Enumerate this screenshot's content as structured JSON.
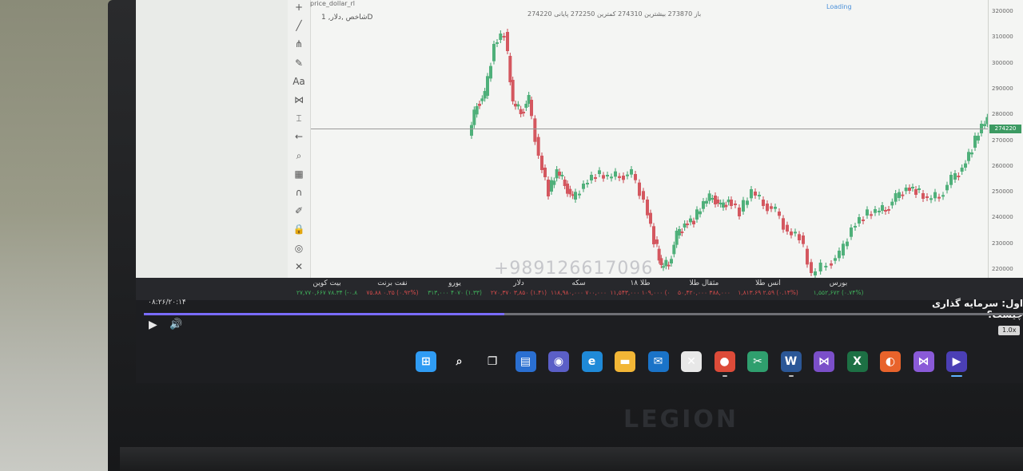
{
  "chart": {
    "symbol_tab": "price_dollar_rl",
    "legend_title": "شاخص ,دلار, 1D",
    "ohlc_text": "باز 273870 بیشترین 274310 کمترین 272250 پایانی 274220",
    "loading": "Loading",
    "current_price": "274220",
    "watermark": "+989126617096",
    "price_ticks": [
      "320000",
      "310000",
      "300000",
      "290000",
      "280000",
      "270000",
      "260000",
      "250000",
      "240000",
      "230000",
      "220000"
    ]
  },
  "toolbar_icons": [
    "crosshair-icon",
    "trend-line-icon",
    "pitchfork-icon",
    "brush-icon",
    "text-icon",
    "pattern-icon",
    "measure-icon",
    "arrow-left-icon",
    "zoom-icon",
    "ruler-icon",
    "magnet-icon",
    "pencil-lock-icon",
    "lock-icon",
    "eye-icon",
    "remove-icon"
  ],
  "ticker": [
    {
      "name": "بیت کوین",
      "value": "۲۷,۷۷۰,۶۶۷ ۷۸.۳۴ (-۰.۸",
      "up": true
    },
    {
      "name": "نفت برنت",
      "value": "۷۵.۸۸ ۰.۲۵ (۰.۹۲%)",
      "up": false
    },
    {
      "name": "یورو",
      "value": "۳۱۳,۰۰۰ ۴۰۷۰ (۱.۳۳)",
      "up": true
    },
    {
      "name": "دلار",
      "value": "۲۷۰,۳۷۰ ۳,۸۵۰ (۱.۴۱)",
      "up": false
    },
    {
      "name": "سکه",
      "value": "۱۱۸,۹۸۰,۰۰۰ ۷۰۰,۰۰۰",
      "up": false
    },
    {
      "name": "طلا ۱۸",
      "value": "۱۱,۵۴۳,۰۰۰ ۱۰۹,۰۰۰ (۰",
      "up": false
    },
    {
      "name": "مثقال طلا",
      "value": "۵۰,۴۲۰,۰۰۰ ۳۸۸,۰۰۰",
      "up": false
    },
    {
      "name": "انس طلا",
      "value": "۱,۸۱۳.۶۹ ۲.۵۹ (۰.۱۴%)",
      "up": false
    },
    {
      "name": "بورس",
      "value": "۱,۵۵۲,۶۷۲ (۰.۷۴%)",
      "up": true
    }
  ],
  "player": {
    "timecode": "۰۸:۲۶/۲۰:۱۴",
    "title": "اول: سرمایه گذاری چیست؟",
    "speed": "1.0x",
    "progress": 0.41
  },
  "taskbar": [
    {
      "icon": "windows-start-icon",
      "color": "#2f9cf4",
      "glyph": "⊞"
    },
    {
      "icon": "search-icon",
      "color": "transparent",
      "glyph": "⌕"
    },
    {
      "icon": "task-view-icon",
      "color": "transparent",
      "glyph": "❐"
    },
    {
      "icon": "widgets-icon",
      "color": "#2a6fd1",
      "glyph": "▤"
    },
    {
      "icon": "teams-chat-icon",
      "color": "#5b5fc7",
      "glyph": "◉"
    },
    {
      "icon": "edge-icon",
      "color": "#1f8ad8",
      "glyph": "e"
    },
    {
      "icon": "file-explorer-icon",
      "color": "#f2b636",
      "glyph": "▬"
    },
    {
      "icon": "mail-icon",
      "color": "#1a73c8",
      "glyph": "✉"
    },
    {
      "icon": "xbox-icon",
      "color": "#e8e8e8",
      "glyph": "✕"
    },
    {
      "icon": "chrome-icon",
      "color": "#dd4b39",
      "glyph": "●"
    },
    {
      "icon": "snip-tool-icon",
      "color": "#2f9f6e",
      "glyph": "✂"
    },
    {
      "icon": "word-icon",
      "color": "#2b5797",
      "glyph": "W"
    },
    {
      "icon": "visual-studio-icon",
      "color": "#7b4fc9",
      "glyph": "⋈"
    },
    {
      "icon": "excel-icon",
      "color": "#1d7044",
      "glyph": "X"
    },
    {
      "icon": "firefox-icon",
      "color": "#e8632b",
      "glyph": "◐"
    },
    {
      "icon": "visual-studio-2-icon",
      "color": "#8a5ad8",
      "glyph": "⋈"
    },
    {
      "icon": "media-player-icon",
      "color": "#4b3fb5",
      "glyph": "▶"
    }
  ],
  "brand": "LEGION"
}
